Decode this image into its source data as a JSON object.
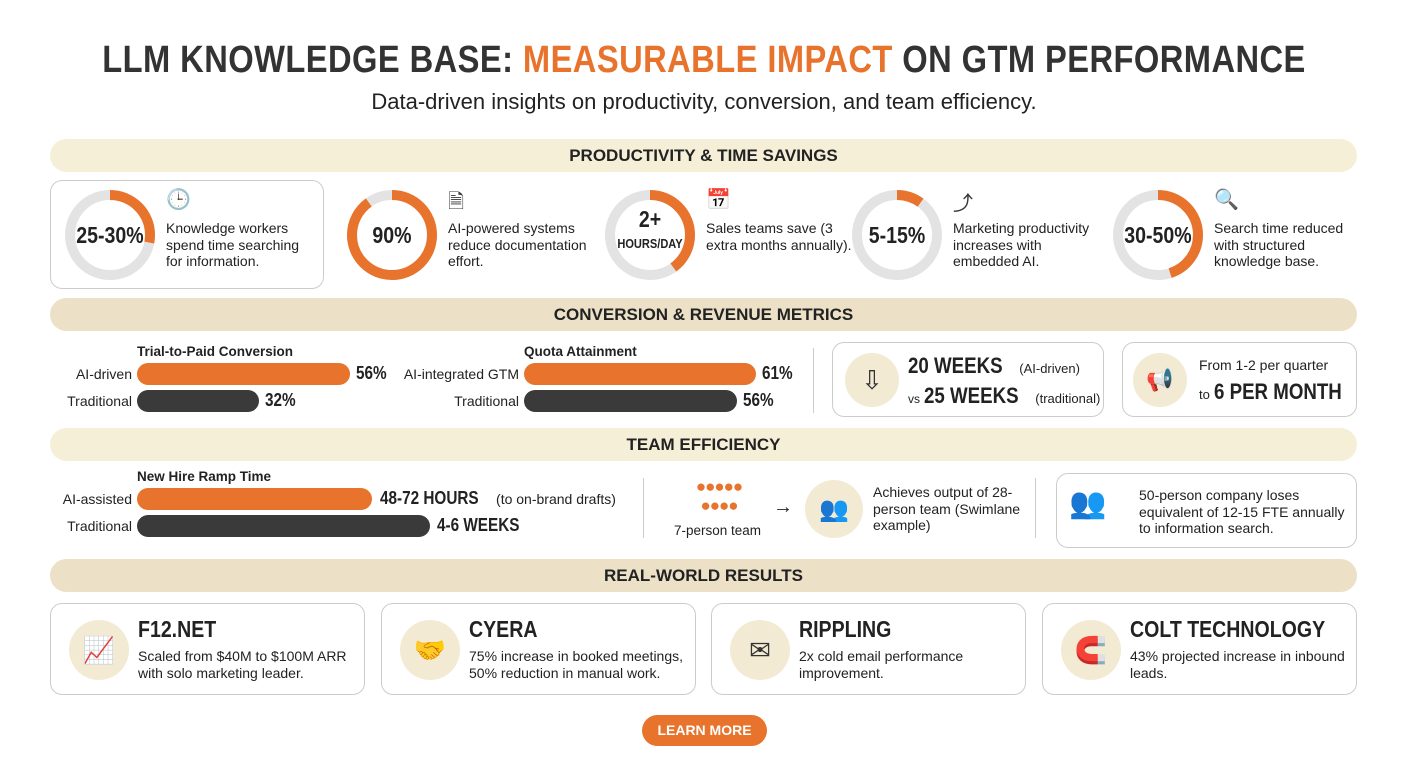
{
  "header": {
    "title_part1": "LLM KNOWLEDGE BASE: ",
    "title_accent": "MEASURABLE IMPACT",
    "title_part2": " ON GTM PERFORMANCE",
    "subtitle": "Data-driven insights on productivity, conversion, and team efficiency."
  },
  "colors": {
    "accent": "#e8732c",
    "dark": "#3a3a3a",
    "track": "#e3e3e3",
    "band": "#f6efd8"
  },
  "productivity": {
    "heading": "PRODUCTIVITY & TIME SAVINGS",
    "stats": [
      {
        "value": "25-30%",
        "fill": 0.28,
        "icon": "clock-icon",
        "text": "Knowledge workers spend time searching for information."
      },
      {
        "value": "90%",
        "fill": 0.9,
        "icon": "document-icon",
        "text": "AI-powered systems reduce documentation effort."
      },
      {
        "value": "2+",
        "value_sub": "HOURS/DAY",
        "fill": 0.4,
        "icon": "calendar-icon",
        "text": "Sales teams save (3 extra months annually)."
      },
      {
        "value": "5-15%",
        "fill": 0.1,
        "icon": "arrow-up-icon",
        "text": "Marketing productivity increases with embedded AI."
      },
      {
        "value": "30-50%",
        "fill": 0.45,
        "icon": "magnifier-icon",
        "text": "Search time reduced with structured knowledge base."
      }
    ]
  },
  "conversion": {
    "heading": "CONVERSION & REVENUE METRICS",
    "trial": {
      "title": "Trial-to-Paid Conversion",
      "rows": [
        {
          "label": "AI-driven",
          "value": 56,
          "display": "56%"
        },
        {
          "label": "Traditional",
          "value": 32,
          "display": "32%"
        }
      ]
    },
    "quota": {
      "title": "Quota Attainment",
      "rows": [
        {
          "label": "AI-integrated GTM",
          "value": 61,
          "display": "61%"
        },
        {
          "label": "Traditional",
          "value": 56,
          "display": "56%"
        }
      ]
    },
    "cycle": {
      "icon": "arrow-down-icon",
      "a": "20 WEEKS",
      "a_note": "(AI-driven)",
      "vs": "vs",
      "b": "25 WEEKS",
      "b_note": "(traditional)"
    },
    "content": {
      "icon": "megaphone-icon",
      "line1": "From 1-2 per quarter",
      "to": "to",
      "big": "6 PER MONTH"
    }
  },
  "team": {
    "heading": "TEAM EFFICIENCY",
    "ramp": {
      "title": "New Hire Ramp Time",
      "rows": [
        {
          "label": "AI-assisted",
          "big": "48-72 HOURS",
          "note": "(to on-brand drafts)"
        },
        {
          "label": "Traditional",
          "big": "4-6 WEEKS",
          "note": ""
        }
      ]
    },
    "small_team": {
      "label": "7-person team",
      "arrow": "→",
      "text": "Achieves output of 28-person team (Swimlane example)"
    },
    "loss": {
      "text": "50-person company loses equivalent of 12-15 FTE annually to information search."
    }
  },
  "results": {
    "heading": "REAL-WORLD RESULTS",
    "cards": [
      {
        "name": "F12.NET",
        "icon": "growth-chart-icon",
        "text": "Scaled from $40M to $100M ARR with solo marketing leader."
      },
      {
        "name": "CYERA",
        "icon": "handshake-icon",
        "text": "75% increase in booked meetings, 50% reduction in manual work."
      },
      {
        "name": "RIPPLING",
        "icon": "envelope-icon",
        "text": "2x cold email performance improvement."
      },
      {
        "name": "COLT TECHNOLOGY",
        "icon": "magnet-icon",
        "text": "43% projected increase in inbound leads."
      }
    ]
  },
  "cta": {
    "label": "LEARN MORE"
  }
}
